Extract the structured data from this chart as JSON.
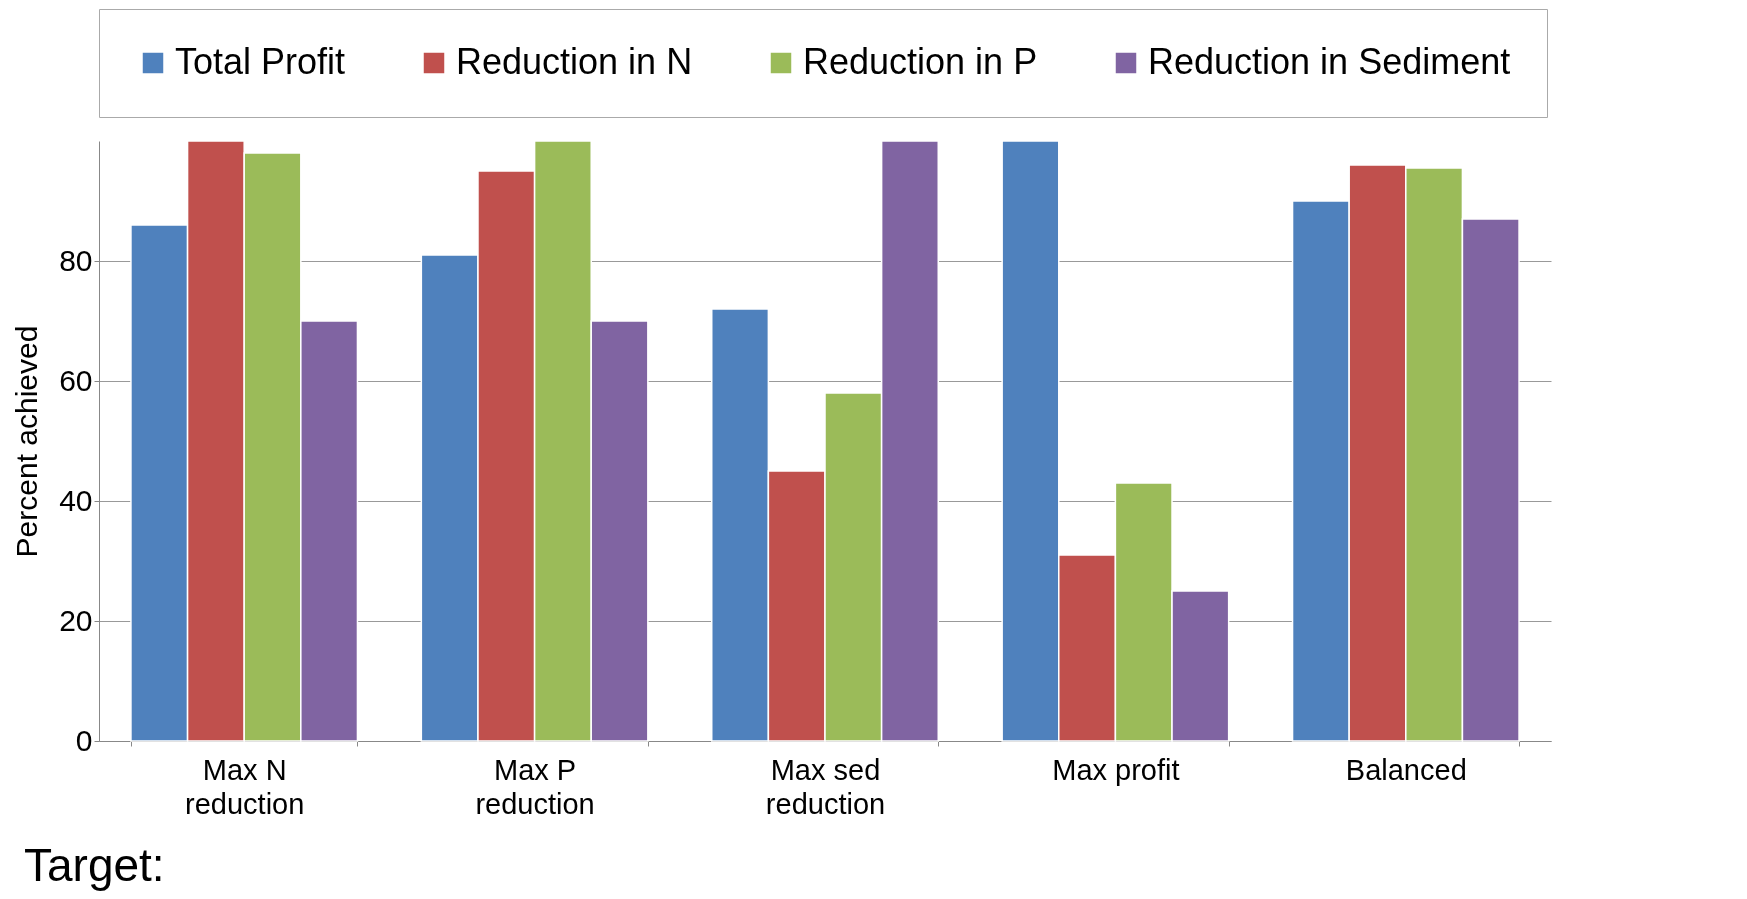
{
  "chart_data": {
    "type": "bar",
    "ylabel": "Percent achieved",
    "categories": [
      "Max N\nreduction",
      "Max P\nreduction",
      "Max sed\nreduction",
      "Max profit",
      "Balanced"
    ],
    "series": [
      {
        "name": "Total Profit",
        "color": "#4f81bd",
        "values": [
          86,
          81,
          72,
          100,
          90
        ]
      },
      {
        "name": "Reduction in N",
        "color": "#c0504d",
        "values": [
          100,
          95,
          45,
          31,
          96
        ]
      },
      {
        "name": "Reduction in P",
        "color": "#9bbb59",
        "values": [
          98,
          100,
          58,
          43,
          95.5
        ]
      },
      {
        "name": "Reduction in Sediment",
        "color": "#8064a2",
        "values": [
          70,
          70,
          100,
          25,
          87
        ]
      }
    ],
    "ylim": [
      0,
      100
    ],
    "yticks": [
      0,
      20,
      40,
      60,
      80
    ],
    "grid": "y",
    "legend": "top",
    "annotations": [
      "Target:"
    ]
  }
}
